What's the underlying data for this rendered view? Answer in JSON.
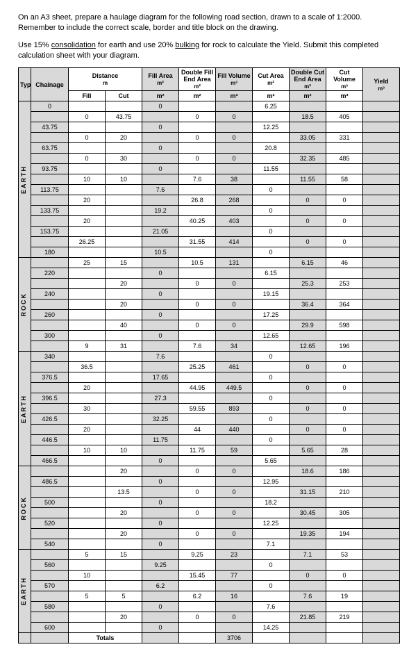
{
  "instructions": {
    "p1": "On an A3 sheet, prepare a haulage diagram for the following road section, drawn to a scale of 1:2000. Remember to include the correct scale, border and title block on the drawing.",
    "p2_a": "Use 15% ",
    "p2_u1": "consolidation",
    "p2_b": " for earth and use 20% ",
    "p2_u2": "bulking",
    "p2_c": " for rock to calculate the Yield. Submit this completed calculation sheet with your diagram."
  },
  "headers": {
    "type": "Type",
    "chainage": "Chainage",
    "distance": "Distance",
    "distance_unit": "m",
    "fill_area": "Fill Area",
    "fill_area_unit": "m²",
    "dfe": "Double Fill End Area",
    "dfe_unit": "m²",
    "fill_vol": "Fill Volume",
    "fill_vol_unit": "m³",
    "cut_area": "Cut Area",
    "cut_area_unit": "m²",
    "dce": "Double Cut End Area",
    "dce_unit": "m²",
    "cut_vol": "Cut Volume",
    "cut_vol_unit": "m³",
    "yield": "Yield",
    "yield_unit": "m³",
    "fill": "Fill",
    "cut": "Cut",
    "totals": "Totals"
  },
  "types": {
    "earth": "EARTH",
    "rock": "ROCK"
  },
  "rows": [
    {
      "ch": "0",
      "fill": "",
      "cut": "",
      "fa": "0",
      "dfe": "",
      "fv": "",
      "ca": "6.25",
      "dce": "",
      "cv": ""
    },
    {
      "ch": "",
      "fill": "0",
      "cut": "43.75",
      "fa": "",
      "dfe": "0",
      "fv": "0",
      "ca": "",
      "dce": "18.5",
      "cv": "405"
    },
    {
      "ch": "43.75",
      "fill": "",
      "cut": "",
      "fa": "0",
      "dfe": "",
      "fv": "",
      "ca": "12.25",
      "dce": "",
      "cv": ""
    },
    {
      "ch": "",
      "fill": "0",
      "cut": "20",
      "fa": "",
      "dfe": "0",
      "fv": "0",
      "ca": "",
      "dce": "33.05",
      "cv": "331"
    },
    {
      "ch": "63.75",
      "fill": "",
      "cut": "",
      "fa": "0",
      "dfe": "",
      "fv": "",
      "ca": "20.8",
      "dce": "",
      "cv": ""
    },
    {
      "ch": "",
      "fill": "0",
      "cut": "30",
      "fa": "",
      "dfe": "0",
      "fv": "0",
      "ca": "",
      "dce": "32.35",
      "cv": "485"
    },
    {
      "ch": "93.75",
      "fill": "",
      "cut": "",
      "fa": "0",
      "dfe": "",
      "fv": "",
      "ca": "11.55",
      "dce": "",
      "cv": ""
    },
    {
      "ch": "",
      "fill": "10",
      "cut": "10",
      "fa": "",
      "dfe": "7.6",
      "fv": "38",
      "ca": "",
      "dce": "11.55",
      "cv": "58"
    },
    {
      "ch": "113.75",
      "fill": "",
      "cut": "",
      "fa": "7.6",
      "dfe": "",
      "fv": "",
      "ca": "0",
      "dce": "",
      "cv": ""
    },
    {
      "ch": "",
      "fill": "20",
      "cut": "",
      "fa": "",
      "dfe": "26.8",
      "fv": "268",
      "ca": "",
      "dce": "0",
      "cv": "0"
    },
    {
      "ch": "133.75",
      "fill": "",
      "cut": "",
      "fa": "19.2",
      "dfe": "",
      "fv": "",
      "ca": "0",
      "dce": "",
      "cv": ""
    },
    {
      "ch": "",
      "fill": "20",
      "cut": "",
      "fa": "",
      "dfe": "40.25",
      "fv": "403",
      "ca": "",
      "dce": "0",
      "cv": "0"
    },
    {
      "ch": "153.75",
      "fill": "",
      "cut": "",
      "fa": "21.05",
      "dfe": "",
      "fv": "",
      "ca": "0",
      "dce": "",
      "cv": ""
    },
    {
      "ch": "",
      "fill": "26.25",
      "cut": "",
      "fa": "",
      "dfe": "31.55",
      "fv": "414",
      "ca": "",
      "dce": "0",
      "cv": "0"
    },
    {
      "ch": "180",
      "fill": "",
      "cut": "",
      "fa": "10.5",
      "dfe": "",
      "fv": "",
      "ca": "0",
      "dce": "",
      "cv": ""
    },
    {
      "ch": "",
      "fill": "25",
      "cut": "15",
      "fa": "",
      "dfe": "10.5",
      "fv": "131",
      "ca": "",
      "dce": "6.15",
      "cv": "46"
    },
    {
      "ch": "220",
      "fill": "",
      "cut": "",
      "fa": "0",
      "dfe": "",
      "fv": "",
      "ca": "6.15",
      "dce": "",
      "cv": ""
    },
    {
      "ch": "",
      "fill": "",
      "cut": "20",
      "fa": "",
      "dfe": "0",
      "fv": "0",
      "ca": "",
      "dce": "25.3",
      "cv": "253"
    },
    {
      "ch": "240",
      "fill": "",
      "cut": "",
      "fa": "0",
      "dfe": "",
      "fv": "",
      "ca": "19.15",
      "dce": "",
      "cv": ""
    },
    {
      "ch": "",
      "fill": "",
      "cut": "20",
      "fa": "",
      "dfe": "0",
      "fv": "0",
      "ca": "",
      "dce": "36.4",
      "cv": "364"
    },
    {
      "ch": "260",
      "fill": "",
      "cut": "",
      "fa": "0",
      "dfe": "",
      "fv": "",
      "ca": "17.25",
      "dce": "",
      "cv": ""
    },
    {
      "ch": "",
      "fill": "",
      "cut": "40",
      "fa": "",
      "dfe": "0",
      "fv": "0",
      "ca": "",
      "dce": "29.9",
      "cv": "598"
    },
    {
      "ch": "300",
      "fill": "",
      "cut": "",
      "fa": "0",
      "dfe": "",
      "fv": "",
      "ca": "12.65",
      "dce": "",
      "cv": ""
    },
    {
      "ch": "",
      "fill": "9",
      "cut": "31",
      "fa": "",
      "dfe": "7.6",
      "fv": "34",
      "ca": "",
      "dce": "12.65",
      "cv": "196"
    },
    {
      "ch": "340",
      "fill": "",
      "cut": "",
      "fa": "7.6",
      "dfe": "",
      "fv": "",
      "ca": "0",
      "dce": "",
      "cv": ""
    },
    {
      "ch": "",
      "fill": "36.5",
      "cut": "",
      "fa": "",
      "dfe": "25.25",
      "fv": "461",
      "ca": "",
      "dce": "0",
      "cv": "0"
    },
    {
      "ch": "376.5",
      "fill": "",
      "cut": "",
      "fa": "17.65",
      "dfe": "",
      "fv": "",
      "ca": "0",
      "dce": "",
      "cv": ""
    },
    {
      "ch": "",
      "fill": "20",
      "cut": "",
      "fa": "",
      "dfe": "44.95",
      "fv": "449.5",
      "ca": "",
      "dce": "0",
      "cv": "0"
    },
    {
      "ch": "396.5",
      "fill": "",
      "cut": "",
      "fa": "27.3",
      "dfe": "",
      "fv": "",
      "ca": "0",
      "dce": "",
      "cv": ""
    },
    {
      "ch": "",
      "fill": "30",
      "cut": "",
      "fa": "",
      "dfe": "59.55",
      "fv": "893",
      "ca": "",
      "dce": "0",
      "cv": "0"
    },
    {
      "ch": "426.5",
      "fill": "",
      "cut": "",
      "fa": "32.25",
      "dfe": "",
      "fv": "",
      "ca": "0",
      "dce": "",
      "cv": ""
    },
    {
      "ch": "",
      "fill": "20",
      "cut": "",
      "fa": "",
      "dfe": "44",
      "fv": "440",
      "ca": "",
      "dce": "0",
      "cv": "0"
    },
    {
      "ch": "446.5",
      "fill": "",
      "cut": "",
      "fa": "11.75",
      "dfe": "",
      "fv": "",
      "ca": "0",
      "dce": "",
      "cv": ""
    },
    {
      "ch": "",
      "fill": "10",
      "cut": "10",
      "fa": "",
      "dfe": "11.75",
      "fv": "59",
      "ca": "",
      "dce": "5.65",
      "cv": "28"
    },
    {
      "ch": "466.5",
      "fill": "",
      "cut": "",
      "fa": "0",
      "dfe": "",
      "fv": "",
      "ca": "5.65",
      "dce": "",
      "cv": ""
    },
    {
      "ch": "",
      "fill": "",
      "cut": "20",
      "fa": "",
      "dfe": "0",
      "fv": "0",
      "ca": "",
      "dce": "18.6",
      "cv": "186"
    },
    {
      "ch": "486.5",
      "fill": "",
      "cut": "",
      "fa": "0",
      "dfe": "",
      "fv": "",
      "ca": "12.95",
      "dce": "",
      "cv": ""
    },
    {
      "ch": "",
      "fill": "",
      "cut": "13.5",
      "fa": "",
      "dfe": "0",
      "fv": "0",
      "ca": "",
      "dce": "31.15",
      "cv": "210"
    },
    {
      "ch": "500",
      "fill": "",
      "cut": "",
      "fa": "0",
      "dfe": "",
      "fv": "",
      "ca": "18.2",
      "dce": "",
      "cv": ""
    },
    {
      "ch": "",
      "fill": "",
      "cut": "20",
      "fa": "",
      "dfe": "0",
      "fv": "0",
      "ca": "",
      "dce": "30.45",
      "cv": "305"
    },
    {
      "ch": "520",
      "fill": "",
      "cut": "",
      "fa": "0",
      "dfe": "",
      "fv": "",
      "ca": "12.25",
      "dce": "",
      "cv": ""
    },
    {
      "ch": "",
      "fill": "",
      "cut": "20",
      "fa": "",
      "dfe": "0",
      "fv": "0",
      "ca": "",
      "dce": "19.35",
      "cv": "194"
    },
    {
      "ch": "540",
      "fill": "",
      "cut": "",
      "fa": "0",
      "dfe": "",
      "fv": "",
      "ca": "7.1",
      "dce": "",
      "cv": ""
    },
    {
      "ch": "",
      "fill": "5",
      "cut": "15",
      "fa": "",
      "dfe": "9.25",
      "fv": "23",
      "ca": "",
      "dce": "7.1",
      "cv": "53"
    },
    {
      "ch": "560",
      "fill": "",
      "cut": "",
      "fa": "9.25",
      "dfe": "",
      "fv": "",
      "ca": "0",
      "dce": "",
      "cv": ""
    },
    {
      "ch": "",
      "fill": "10",
      "cut": "",
      "fa": "",
      "dfe": "15.45",
      "fv": "77",
      "ca": "",
      "dce": "0",
      "cv": "0"
    },
    {
      "ch": "570",
      "fill": "",
      "cut": "",
      "fa": "6.2",
      "dfe": "",
      "fv": "",
      "ca": "0",
      "dce": "",
      "cv": ""
    },
    {
      "ch": "",
      "fill": "5",
      "cut": "5",
      "fa": "",
      "dfe": "6.2",
      "fv": "16",
      "ca": "",
      "dce": "7.6",
      "cv": "19"
    },
    {
      "ch": "580",
      "fill": "",
      "cut": "",
      "fa": "0",
      "dfe": "",
      "fv": "",
      "ca": "7.6",
      "dce": "",
      "cv": ""
    },
    {
      "ch": "",
      "fill": "",
      "cut": "20",
      "fa": "",
      "dfe": "0",
      "fv": "0",
      "ca": "",
      "dce": "21.85",
      "cv": "219"
    },
    {
      "ch": "600",
      "fill": "",
      "cut": "",
      "fa": "0",
      "dfe": "",
      "fv": "",
      "ca": "14.25",
      "dce": "",
      "cv": ""
    }
  ],
  "type_blocks": [
    {
      "start": 0,
      "span": 15,
      "label": "EARTH"
    },
    {
      "start": 15,
      "span": 9,
      "label": "ROCK"
    },
    {
      "start": 24,
      "span": 11,
      "label": "EARTH"
    },
    {
      "start": 35,
      "span": 8,
      "label": "ROCK"
    },
    {
      "start": 43,
      "span": 8,
      "label": "EARTH"
    }
  ],
  "totals": {
    "fv": "3706"
  }
}
